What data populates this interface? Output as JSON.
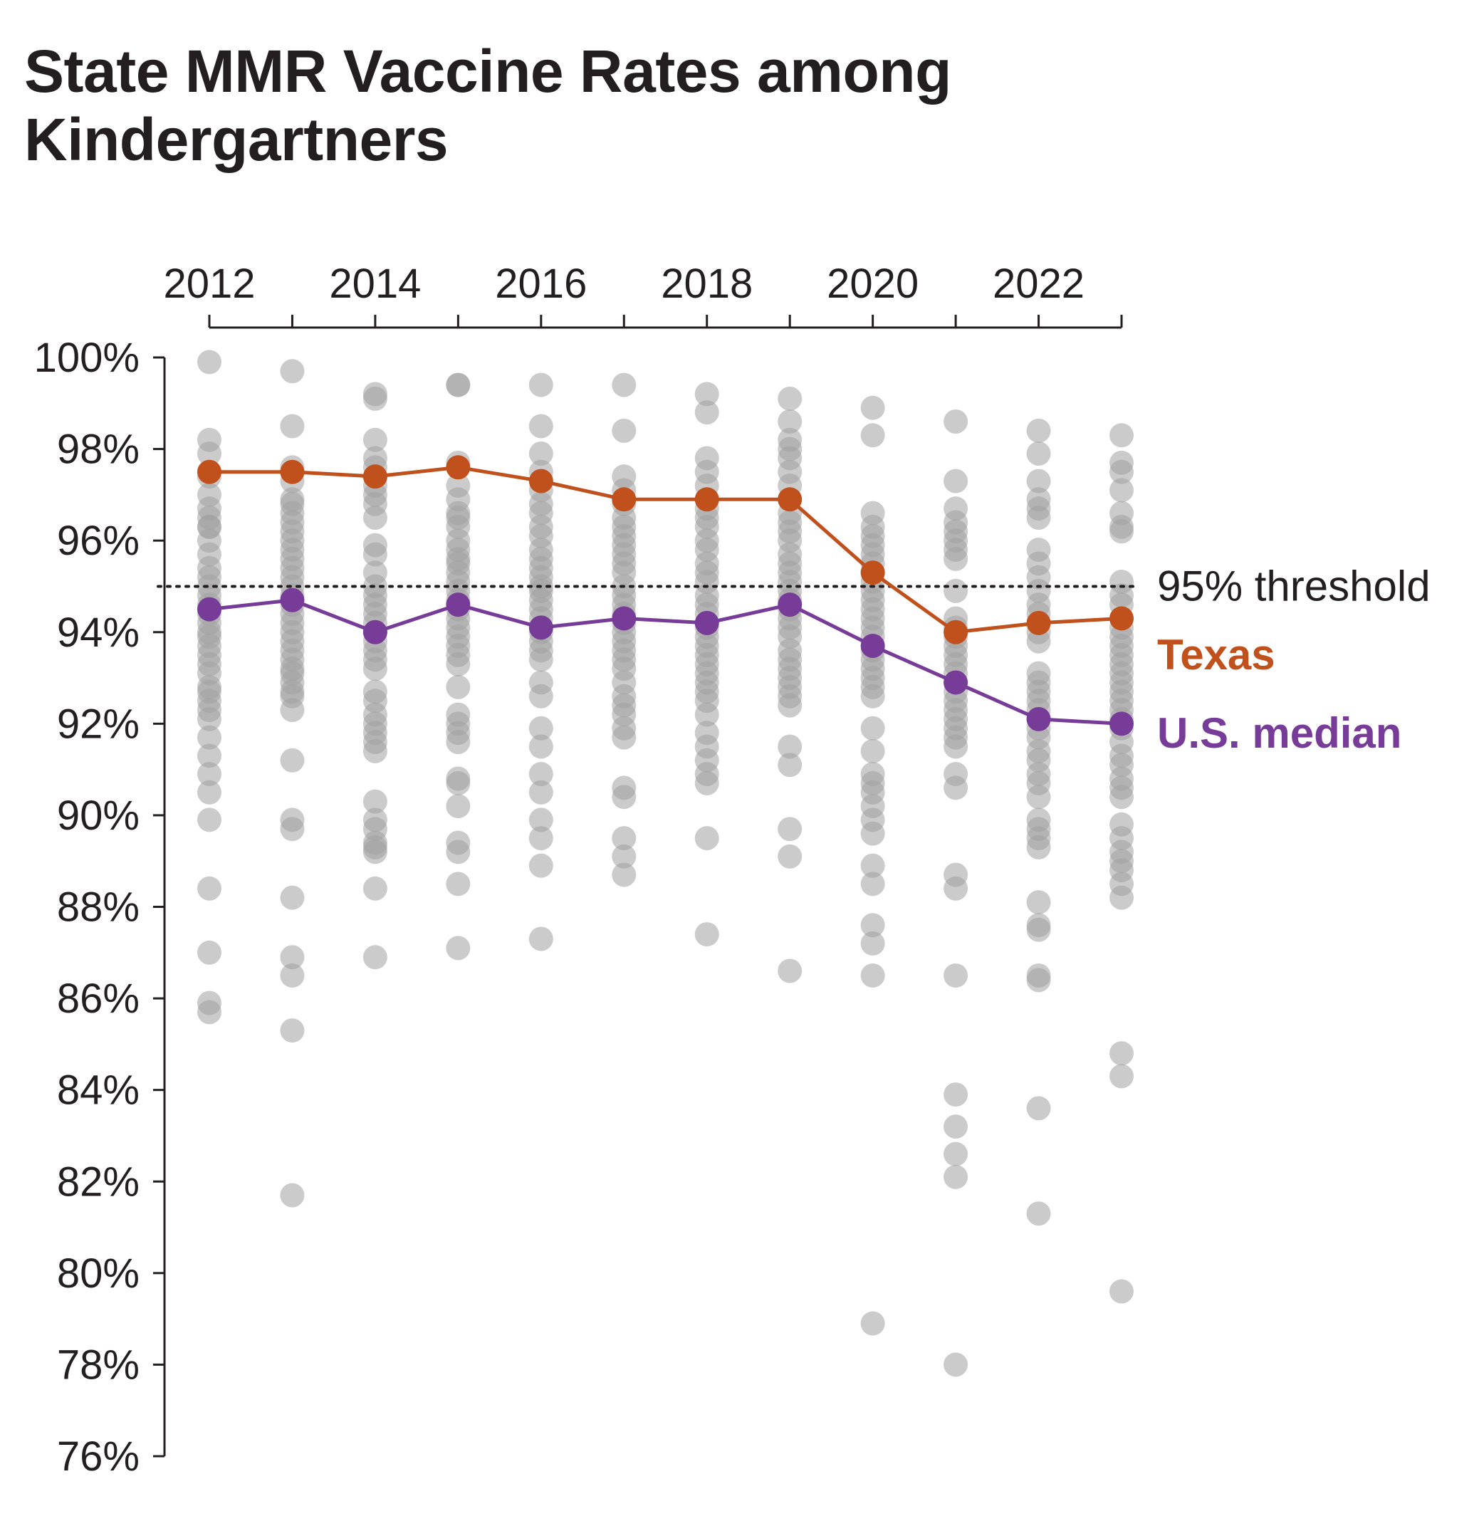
{
  "title": "State MMR Vaccine Rates among Kindergartners",
  "chart_data": {
    "type": "scatter",
    "title": "State MMR Vaccine Rates among Kindergartners",
    "x_ticks": [
      "2012",
      "2014",
      "2016",
      "2018",
      "2020",
      "2022"
    ],
    "y_ticks": [
      "100%",
      "98%",
      "96%",
      "94%",
      "92%",
      "90%",
      "88%",
      "86%",
      "84%",
      "82%",
      "80%",
      "78%",
      "76%"
    ],
    "xlim": [
      2012,
      2023
    ],
    "ylim": [
      76,
      100
    ],
    "threshold": {
      "value": 95,
      "label": "95% threshold"
    },
    "colors": {
      "states": "#a0a0a0",
      "texas": "#c0501c",
      "median": "#773b98",
      "axis": "#231f20"
    },
    "years": [
      2012,
      2013,
      2014,
      2015,
      2016,
      2017,
      2018,
      2019,
      2020,
      2021,
      2022,
      2023
    ],
    "series": [
      {
        "name": "Texas",
        "color": "#c0501c",
        "values": [
          97.5,
          97.5,
          97.4,
          97.6,
          97.3,
          96.9,
          96.9,
          96.9,
          95.3,
          94.0,
          94.2,
          94.3
        ]
      },
      {
        "name": "U.S. median",
        "color": "#773b98",
        "values": [
          94.5,
          94.7,
          94.0,
          94.6,
          94.1,
          94.3,
          94.2,
          94.6,
          93.7,
          92.9,
          92.1,
          92.0
        ]
      }
    ],
    "state_points": [
      {
        "year": 2012,
        "values": [
          99.9,
          98.2,
          97.9,
          97.4,
          97.0,
          96.7,
          96.5,
          96.3,
          96.3,
          96.0,
          95.7,
          95.4,
          95.2,
          95.0,
          94.8,
          94.6,
          94.4,
          94.2,
          94.0,
          93.9,
          93.7,
          93.5,
          93.3,
          93.1,
          92.8,
          92.7,
          92.5,
          92.3,
          92.1,
          91.7,
          91.3,
          90.9,
          90.5,
          89.9,
          88.4,
          87.0,
          85.9,
          85.7
        ]
      },
      {
        "year": 2013,
        "values": [
          99.7,
          98.5,
          97.6,
          97.3,
          96.9,
          96.8,
          96.6,
          96.4,
          96.2,
          96.0,
          95.8,
          95.6,
          95.4,
          95.2,
          95.0,
          94.8,
          94.6,
          94.4,
          94.2,
          94.0,
          93.8,
          93.6,
          93.4,
          93.2,
          93.1,
          92.9,
          92.7,
          92.6,
          92.3,
          91.2,
          89.9,
          89.7,
          88.2,
          86.9,
          86.5,
          85.3,
          81.7
        ]
      },
      {
        "year": 2014,
        "values": [
          99.2,
          99.1,
          98.2,
          97.8,
          97.6,
          97.4,
          97.2,
          97.0,
          96.8,
          96.5,
          95.9,
          95.7,
          95.3,
          95.0,
          94.8,
          94.6,
          94.4,
          94.2,
          94.0,
          93.8,
          93.6,
          93.4,
          93.2,
          92.7,
          92.5,
          92.2,
          92.0,
          91.8,
          91.6,
          91.4,
          90.3,
          89.9,
          89.7,
          89.4,
          89.3,
          89.2,
          88.4,
          86.9
        ]
      },
      {
        "year": 2015,
        "values": [
          99.4,
          99.4,
          97.7,
          97.2,
          96.9,
          96.6,
          96.5,
          96.3,
          96.0,
          95.8,
          95.6,
          95.5,
          95.3,
          95.1,
          94.9,
          94.7,
          94.5,
          94.3,
          94.1,
          93.9,
          93.7,
          93.5,
          93.3,
          92.8,
          92.2,
          92.0,
          91.8,
          91.6,
          90.8,
          90.7,
          90.2,
          89.4,
          89.2,
          88.5,
          87.1
        ]
      },
      {
        "year": 2016,
        "values": [
          99.4,
          98.5,
          97.9,
          97.5,
          97.1,
          96.8,
          96.6,
          96.3,
          96.1,
          95.8,
          95.6,
          95.4,
          95.2,
          95.0,
          94.9,
          94.7,
          94.5,
          94.3,
          94.0,
          93.8,
          93.6,
          93.4,
          92.9,
          92.6,
          91.9,
          91.5,
          90.9,
          90.5,
          89.9,
          89.5,
          88.9,
          87.3
        ]
      },
      {
        "year": 2017,
        "values": [
          99.4,
          98.4,
          97.4,
          97.1,
          96.8,
          96.5,
          96.3,
          96.1,
          95.9,
          95.7,
          95.5,
          95.3,
          95.0,
          94.8,
          94.6,
          94.4,
          94.2,
          94.0,
          93.8,
          93.6,
          93.4,
          93.2,
          92.9,
          92.6,
          92.4,
          92.2,
          91.9,
          91.7,
          90.6,
          90.4,
          89.5,
          89.1,
          88.7
        ]
      },
      {
        "year": 2018,
        "values": [
          99.2,
          98.8,
          97.8,
          97.5,
          97.2,
          96.9,
          96.7,
          96.5,
          96.3,
          96.0,
          95.8,
          95.5,
          95.3,
          95.1,
          94.8,
          94.6,
          94.4,
          94.1,
          93.9,
          93.7,
          93.5,
          93.3,
          93.1,
          92.9,
          92.7,
          92.5,
          92.2,
          91.8,
          91.5,
          91.2,
          90.9,
          90.7,
          89.5,
          87.4
        ]
      },
      {
        "year": 2019,
        "values": [
          99.1,
          98.6,
          98.2,
          98.0,
          97.8,
          97.5,
          97.2,
          96.9,
          96.6,
          96.4,
          96.2,
          96.0,
          95.7,
          95.5,
          95.3,
          95.1,
          94.9,
          94.7,
          94.5,
          94.3,
          94.1,
          93.9,
          93.6,
          93.4,
          93.2,
          93.0,
          92.8,
          92.6,
          92.4,
          91.5,
          91.1,
          89.7,
          89.1,
          86.6
        ]
      },
      {
        "year": 2020,
        "values": [
          98.9,
          98.3,
          96.6,
          96.3,
          96.1,
          95.9,
          95.7,
          95.5,
          95.3,
          95.1,
          94.9,
          94.7,
          94.5,
          94.3,
          94.1,
          93.9,
          93.6,
          93.4,
          93.2,
          93.0,
          92.8,
          92.6,
          91.9,
          91.4,
          90.9,
          90.7,
          90.5,
          90.2,
          89.9,
          89.6,
          88.9,
          88.5,
          87.6,
          87.2,
          86.5,
          78.9
        ]
      },
      {
        "year": 2021,
        "values": [
          98.6,
          97.3,
          96.7,
          96.4,
          96.2,
          96.0,
          95.8,
          95.6,
          94.9,
          94.3,
          94.1,
          93.9,
          93.7,
          93.5,
          93.3,
          93.1,
          92.9,
          92.7,
          92.5,
          92.3,
          92.1,
          91.9,
          91.7,
          91.5,
          90.9,
          90.6,
          88.7,
          88.4,
          86.5,
          83.9,
          83.2,
          82.6,
          82.1,
          78.0
        ]
      },
      {
        "year": 2022,
        "values": [
          98.4,
          97.9,
          97.3,
          96.9,
          96.7,
          96.5,
          95.8,
          95.5,
          95.2,
          94.9,
          94.6,
          94.4,
          94.2,
          94.0,
          93.8,
          93.1,
          92.9,
          92.7,
          92.5,
          92.3,
          92.1,
          91.9,
          91.7,
          91.4,
          91.2,
          90.9,
          90.7,
          90.4,
          89.9,
          89.7,
          89.5,
          89.3,
          88.1,
          87.6,
          87.5,
          86.5,
          86.4,
          83.6,
          81.3
        ]
      },
      {
        "year": 2023,
        "values": [
          98.3,
          97.7,
          97.5,
          97.1,
          96.6,
          96.3,
          96.2,
          95.1,
          94.8,
          94.6,
          94.3,
          94.1,
          93.9,
          93.7,
          93.5,
          93.3,
          93.1,
          92.9,
          92.7,
          92.5,
          92.3,
          92.1,
          91.9,
          91.6,
          91.3,
          91.1,
          90.8,
          90.6,
          90.4,
          89.8,
          89.5,
          89.2,
          89.0,
          88.8,
          88.5,
          88.2,
          84.8,
          84.3,
          79.6
        ]
      }
    ]
  }
}
